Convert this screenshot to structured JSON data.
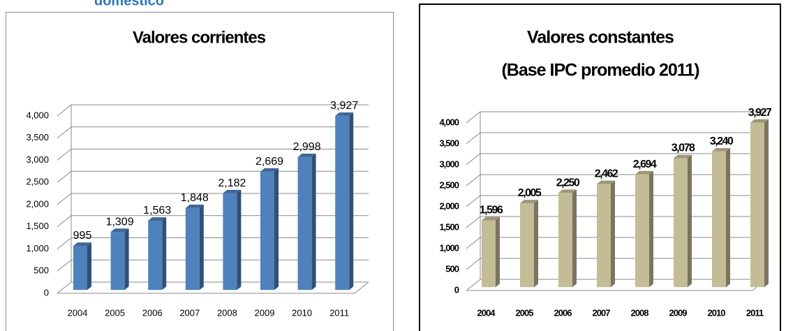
{
  "header": "doméstico",
  "chart_data": [
    {
      "type": "bar",
      "title": "Valores corrientes",
      "categories": [
        "2004",
        "2005",
        "2006",
        "2007",
        "2008",
        "2009",
        "2010",
        "2011"
      ],
      "values": [
        995,
        1309,
        1563,
        1848,
        2182,
        2669,
        2998,
        3927
      ],
      "value_labels": [
        "995",
        "1,309",
        "1,563",
        "1,848",
        "2,182",
        "2,669",
        "2,998",
        "3,927"
      ],
      "color": "#4f81bd",
      "ylim": [
        0,
        4000
      ],
      "yticks": [
        0,
        500,
        {
          "value": 1000,
          "label": "1,000"
        },
        {
          "value": 1500,
          "label": "1,500"
        },
        {
          "value": 2000,
          "label": "2,000"
        },
        {
          "value": 2500,
          "label": "2,500"
        },
        {
          "value": 3000,
          "label": "3,000"
        },
        {
          "value": 3500,
          "label": "3,500"
        },
        {
          "value": 4000,
          "label": "4,000"
        }
      ],
      "grid": true
    },
    {
      "type": "bar",
      "title": "Valores constantes",
      "subtitle": "(Base IPC promedio 2011)",
      "categories": [
        "2004",
        "2005",
        "2006",
        "2007",
        "2008",
        "2009",
        "2010",
        "2011"
      ],
      "values": [
        1596,
        2005,
        2250,
        2462,
        2694,
        3078,
        3240,
        3927
      ],
      "value_labels": [
        "1,596",
        "2,005",
        "2,250",
        "2,462",
        "2,694",
        "3,078",
        "3,240",
        "3,927"
      ],
      "color": "#c4bc96",
      "ylim": [
        0,
        4000
      ],
      "yticks": [
        0,
        500,
        {
          "value": 1000,
          "label": "1,000"
        },
        {
          "value": 1500,
          "label": "1,500"
        },
        {
          "value": 2000,
          "label": "2,000"
        },
        {
          "value": 2500,
          "label": "2,500"
        },
        {
          "value": 3000,
          "label": "3,000"
        },
        {
          "value": 3500,
          "label": "3,500"
        },
        {
          "value": 4000,
          "label": "4,000"
        }
      ],
      "grid": true
    }
  ]
}
